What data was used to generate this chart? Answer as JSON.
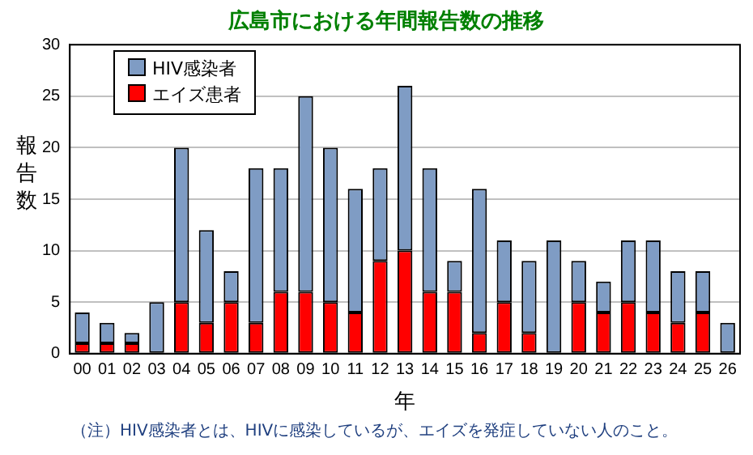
{
  "chart_data": {
    "type": "bar",
    "title": "広島市における年間報告数の推移",
    "xlabel": "年",
    "ylabel": "報告数",
    "categories": [
      "00",
      "01",
      "02",
      "03",
      "04",
      "05",
      "06",
      "07",
      "08",
      "09",
      "10",
      "11",
      "12",
      "13",
      "14",
      "15",
      "16",
      "17",
      "18",
      "19",
      "20",
      "21",
      "22",
      "23",
      "24",
      "25",
      "26"
    ],
    "series": [
      {
        "name": "エイズ患者",
        "color": "#ff0000",
        "values": [
          1,
          1,
          1,
          0,
          5,
          3,
          5,
          3,
          6,
          6,
          5,
          4,
          9,
          10,
          6,
          6,
          2,
          5,
          2,
          0,
          5,
          4,
          5,
          4,
          3,
          4,
          0
        ]
      },
      {
        "name": "HIV感染者",
        "color": "#7f9cc4",
        "values": [
          3,
          2,
          1,
          5,
          15,
          9,
          3,
          15,
          12,
          19,
          15,
          12,
          9,
          16,
          12,
          3,
          14,
          6,
          7,
          11,
          4,
          3,
          6,
          7,
          5,
          4,
          3
        ]
      }
    ],
    "stacked": true,
    "ylim": [
      0,
      30
    ],
    "yticks": [
      0,
      5,
      10,
      15,
      20,
      25,
      30
    ],
    "grid": "y",
    "legend": "top left",
    "annotations": [
      "（注）HIV感染者とは、HIVに感染しているが、エイズを発症していない人のこと。"
    ]
  }
}
